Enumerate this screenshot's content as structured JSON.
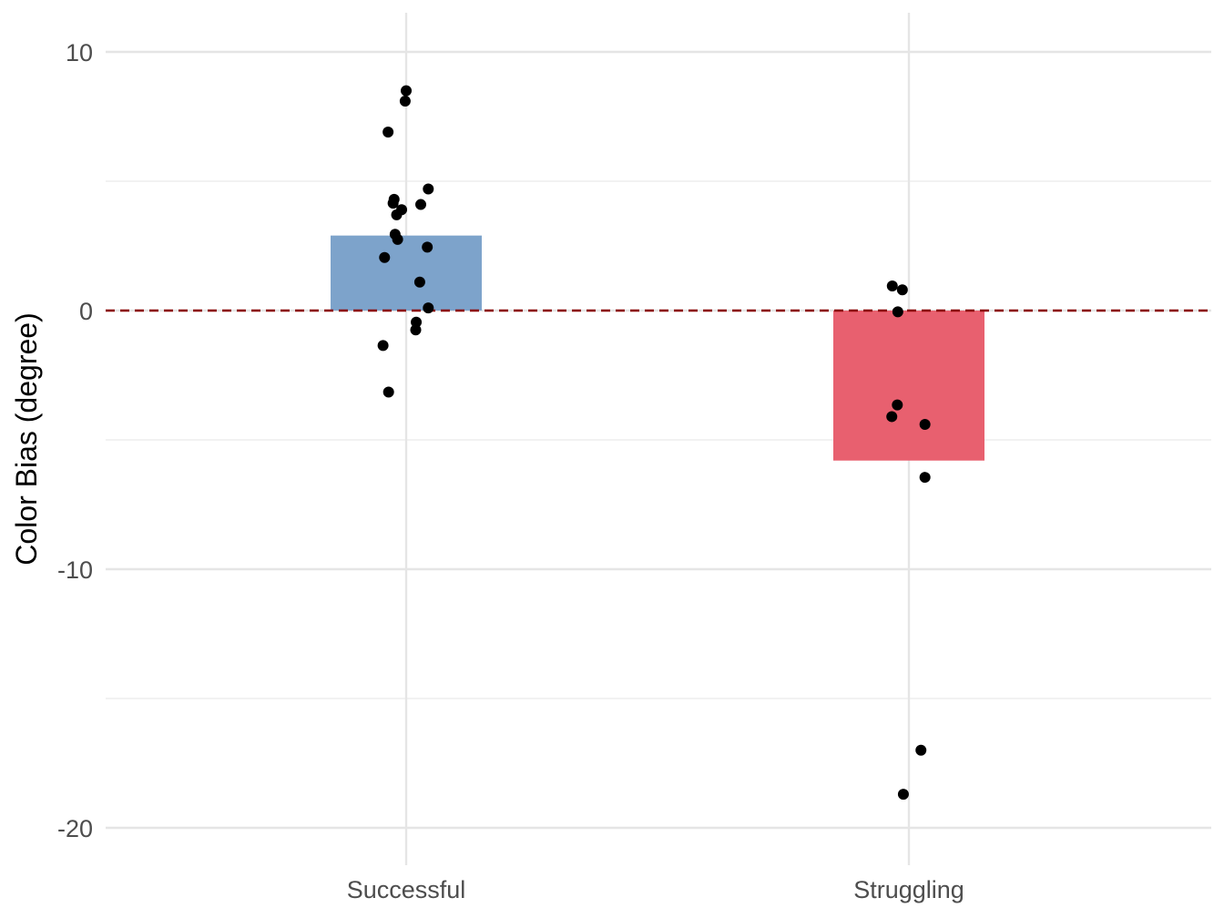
{
  "chart_data": {
    "type": "bar",
    "categories": [
      "Successful",
      "Struggling"
    ],
    "values": [
      2.9,
      -5.8
    ],
    "bar_colors": [
      "#7DA3CB",
      "#E8606F"
    ],
    "ylabel": "Color Bias (degree)",
    "xlabel": "",
    "ylim": [
      -21.2,
      11.5
    ],
    "y_ticks": [
      10,
      0,
      -10,
      -20
    ],
    "y_tick_labels": [
      "10",
      "0",
      "-10",
      "-20"
    ],
    "grid": true,
    "reference_line": {
      "y": 0,
      "style": "dashed",
      "color": "#8B0000"
    },
    "points": [
      {
        "category": "Successful",
        "jitter": 0.0,
        "y": 8.5
      },
      {
        "category": "Successful",
        "jitter": -0.002,
        "y": 8.1
      },
      {
        "category": "Successful",
        "jitter": -0.036,
        "y": 6.9
      },
      {
        "category": "Successful",
        "jitter": 0.044,
        "y": 4.7
      },
      {
        "category": "Successful",
        "jitter": -0.024,
        "y": 4.3
      },
      {
        "category": "Successful",
        "jitter": -0.026,
        "y": 4.15
      },
      {
        "category": "Successful",
        "jitter": 0.029,
        "y": 4.1
      },
      {
        "category": "Successful",
        "jitter": -0.009,
        "y": 3.9
      },
      {
        "category": "Successful",
        "jitter": -0.019,
        "y": 3.7
      },
      {
        "category": "Successful",
        "jitter": -0.022,
        "y": 2.95
      },
      {
        "category": "Successful",
        "jitter": -0.017,
        "y": 2.75
      },
      {
        "category": "Successful",
        "jitter": 0.042,
        "y": 2.45
      },
      {
        "category": "Successful",
        "jitter": -0.043,
        "y": 2.05
      },
      {
        "category": "Successful",
        "jitter": 0.027,
        "y": 1.1
      },
      {
        "category": "Successful",
        "jitter": 0.044,
        "y": 0.1
      },
      {
        "category": "Successful",
        "jitter": 0.02,
        "y": -0.45
      },
      {
        "category": "Successful",
        "jitter": 0.019,
        "y": -0.75
      },
      {
        "category": "Successful",
        "jitter": -0.046,
        "y": -1.35
      },
      {
        "category": "Successful",
        "jitter": -0.035,
        "y": -3.15
      },
      {
        "category": "Struggling",
        "jitter": -0.033,
        "y": 0.95
      },
      {
        "category": "Struggling",
        "jitter": -0.013,
        "y": 0.8
      },
      {
        "category": "Struggling",
        "jitter": -0.022,
        "y": -0.05
      },
      {
        "category": "Struggling",
        "jitter": -0.023,
        "y": -3.65
      },
      {
        "category": "Struggling",
        "jitter": -0.034,
        "y": -4.1
      },
      {
        "category": "Struggling",
        "jitter": 0.032,
        "y": -4.4
      },
      {
        "category": "Struggling",
        "jitter": 0.032,
        "y": -6.45
      },
      {
        "category": "Struggling",
        "jitter": 0.024,
        "y": -17.0
      },
      {
        "category": "Struggling",
        "jitter": -0.011,
        "y": -18.7
      }
    ]
  }
}
